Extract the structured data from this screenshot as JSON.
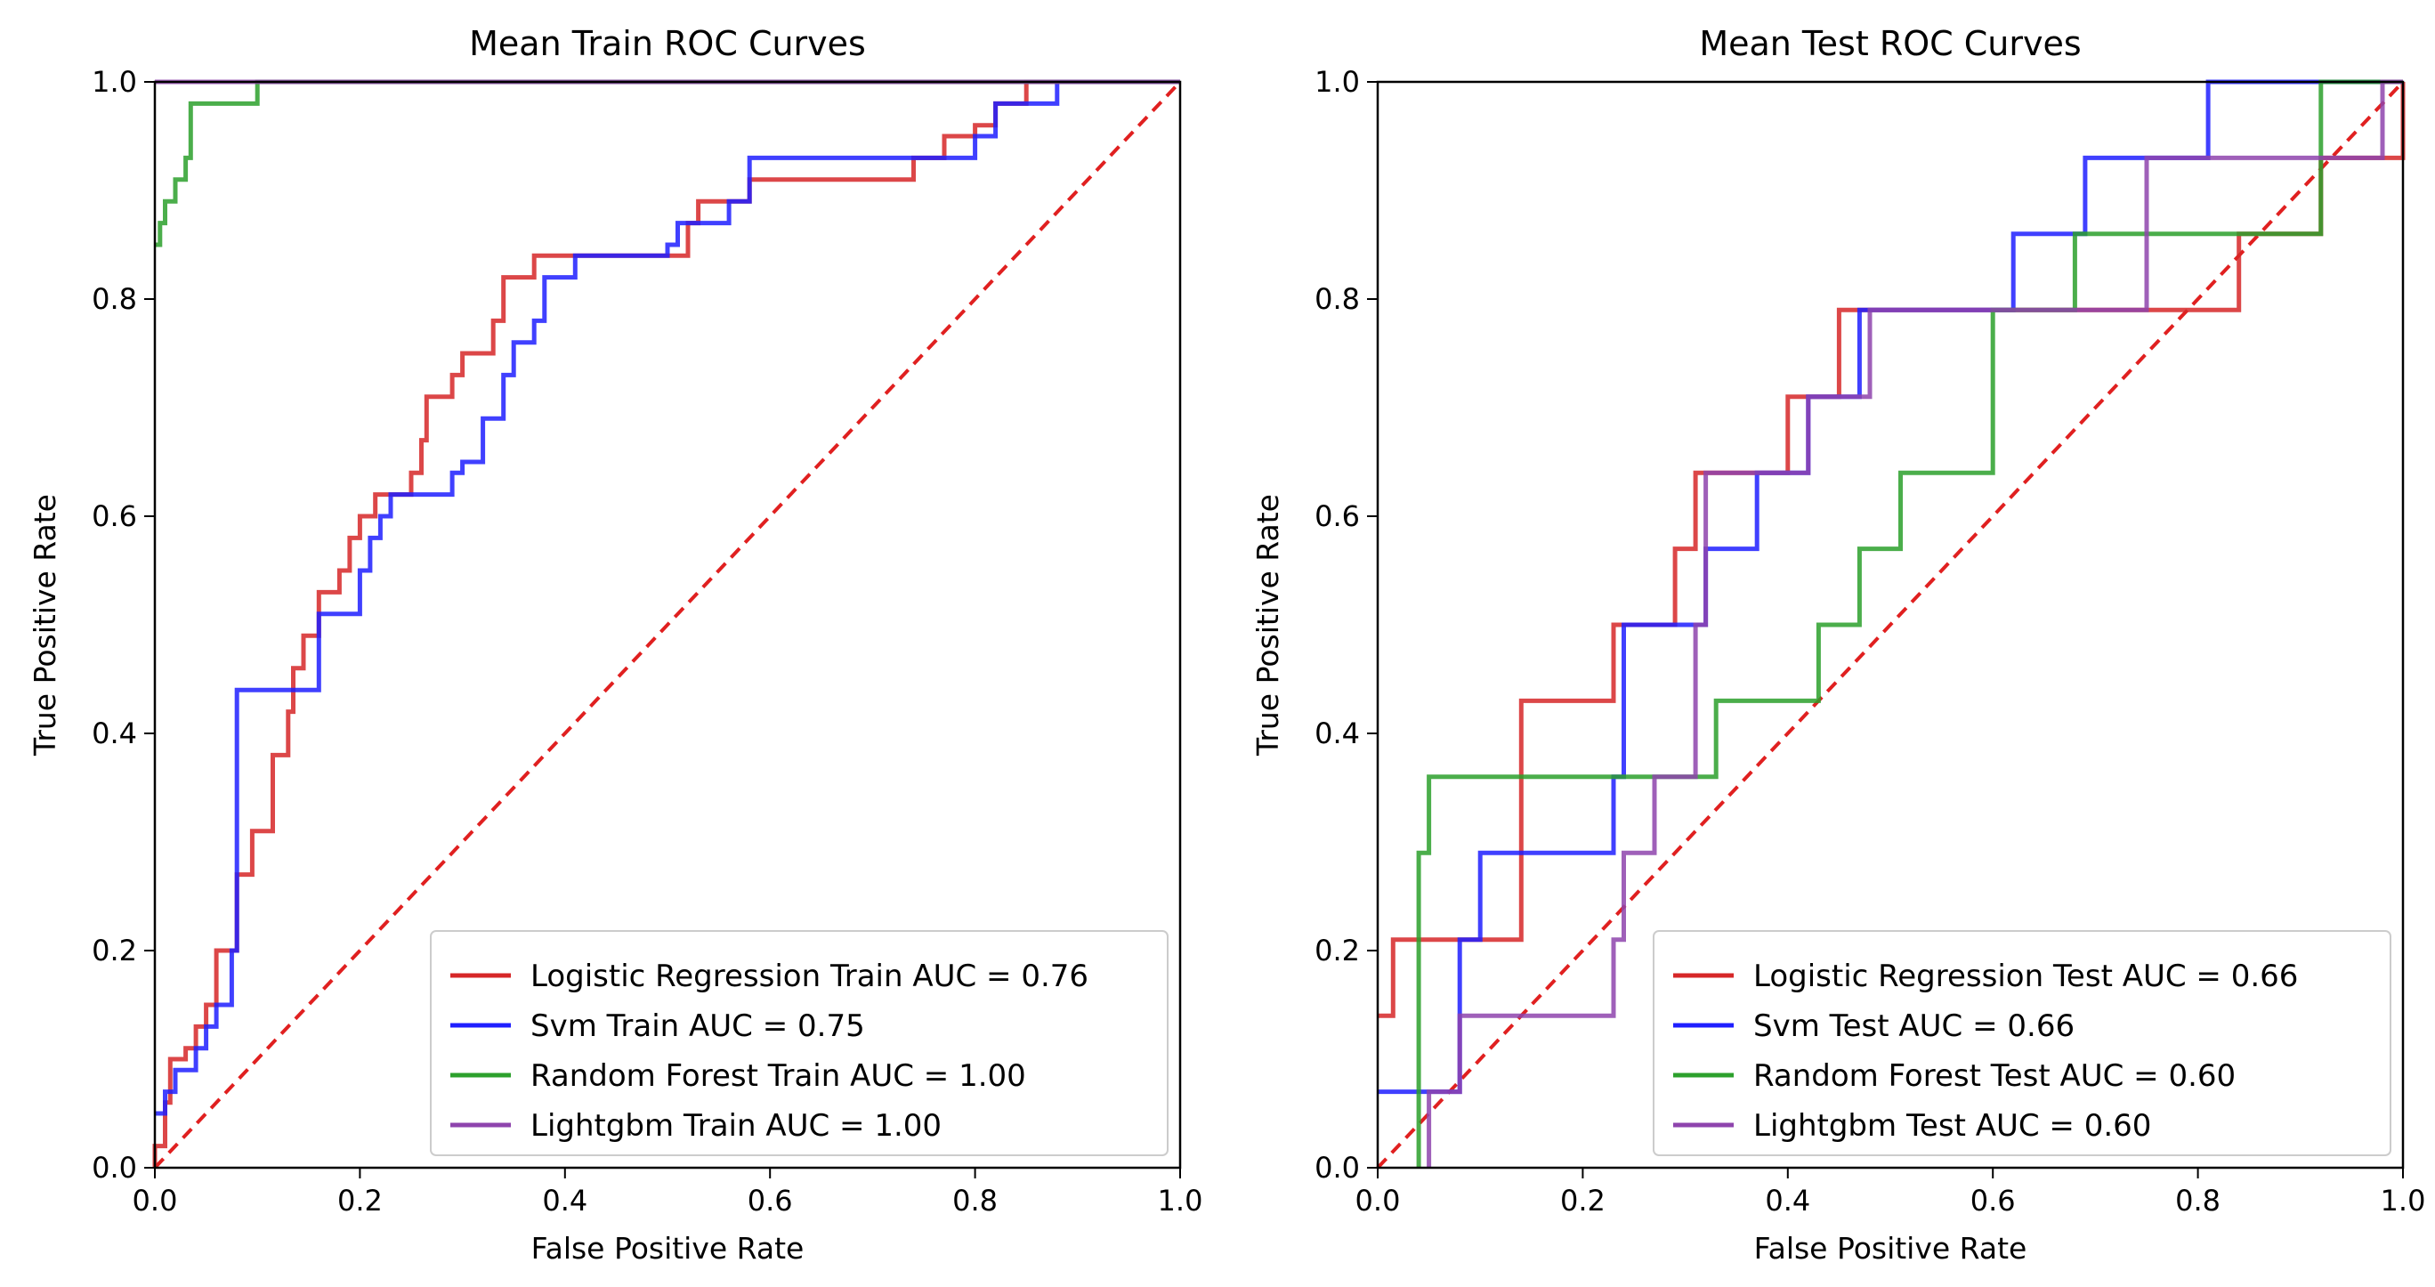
{
  "chart_data": [
    {
      "type": "line",
      "title": "Mean Train ROC Curves",
      "xlabel": "False Positive Rate",
      "ylabel": "True Positive Rate",
      "xlim": [
        0.0,
        1.0
      ],
      "ylim": [
        0.0,
        1.0
      ],
      "xticks": [
        "0.0",
        "0.2",
        "0.4",
        "0.6",
        "0.8",
        "1.0"
      ],
      "yticks": [
        "0.0",
        "0.2",
        "0.4",
        "0.6",
        "0.8",
        "1.0"
      ],
      "grid": false,
      "legend_position": "lower-right",
      "diagonal": {
        "color": "#e02020",
        "style": "dashed"
      },
      "series": [
        {
          "name": "Logistic Regression Train AUC = 0.76",
          "color": "#d62728",
          "points": [
            [
              0.0,
              0.0
            ],
            [
              0.0,
              0.02
            ],
            [
              0.01,
              0.02
            ],
            [
              0.01,
              0.06
            ],
            [
              0.015,
              0.06
            ],
            [
              0.015,
              0.1
            ],
            [
              0.03,
              0.1
            ],
            [
              0.03,
              0.11
            ],
            [
              0.04,
              0.11
            ],
            [
              0.04,
              0.13
            ],
            [
              0.05,
              0.13
            ],
            [
              0.05,
              0.15
            ],
            [
              0.06,
              0.15
            ],
            [
              0.06,
              0.17
            ],
            [
              0.06,
              0.2
            ],
            [
              0.08,
              0.2
            ],
            [
              0.08,
              0.27
            ],
            [
              0.095,
              0.27
            ],
            [
              0.095,
              0.31
            ],
            [
              0.115,
              0.31
            ],
            [
              0.115,
              0.38
            ],
            [
              0.13,
              0.38
            ],
            [
              0.13,
              0.42
            ],
            [
              0.135,
              0.42
            ],
            [
              0.135,
              0.46
            ],
            [
              0.145,
              0.46
            ],
            [
              0.145,
              0.49
            ],
            [
              0.16,
              0.49
            ],
            [
              0.16,
              0.53
            ],
            [
              0.18,
              0.53
            ],
            [
              0.18,
              0.55
            ],
            [
              0.19,
              0.55
            ],
            [
              0.19,
              0.58
            ],
            [
              0.2,
              0.58
            ],
            [
              0.2,
              0.6
            ],
            [
              0.215,
              0.6
            ],
            [
              0.215,
              0.62
            ],
            [
              0.25,
              0.62
            ],
            [
              0.25,
              0.64
            ],
            [
              0.26,
              0.64
            ],
            [
              0.26,
              0.67
            ],
            [
              0.265,
              0.67
            ],
            [
              0.265,
              0.71
            ],
            [
              0.29,
              0.71
            ],
            [
              0.29,
              0.73
            ],
            [
              0.3,
              0.73
            ],
            [
              0.3,
              0.75
            ],
            [
              0.33,
              0.75
            ],
            [
              0.33,
              0.78
            ],
            [
              0.34,
              0.78
            ],
            [
              0.34,
              0.82
            ],
            [
              0.37,
              0.82
            ],
            [
              0.37,
              0.84
            ],
            [
              0.44,
              0.84
            ],
            [
              0.44,
              0.84
            ],
            [
              0.52,
              0.84
            ],
            [
              0.52,
              0.87
            ],
            [
              0.53,
              0.87
            ],
            [
              0.53,
              0.89
            ],
            [
              0.58,
              0.89
            ],
            [
              0.58,
              0.91
            ],
            [
              0.74,
              0.91
            ],
            [
              0.74,
              0.93
            ],
            [
              0.77,
              0.93
            ],
            [
              0.77,
              0.95
            ],
            [
              0.8,
              0.95
            ],
            [
              0.8,
              0.96
            ],
            [
              0.82,
              0.96
            ],
            [
              0.82,
              0.98
            ],
            [
              0.85,
              0.98
            ],
            [
              0.85,
              1.0
            ],
            [
              1.0,
              1.0
            ]
          ]
        },
        {
          "name": "Svm Train AUC = 0.75",
          "color": "#1f1fff",
          "points": [
            [
              0.0,
              0.05
            ],
            [
              0.01,
              0.05
            ],
            [
              0.01,
              0.07
            ],
            [
              0.02,
              0.07
            ],
            [
              0.02,
              0.09
            ],
            [
              0.04,
              0.09
            ],
            [
              0.04,
              0.11
            ],
            [
              0.05,
              0.11
            ],
            [
              0.05,
              0.13
            ],
            [
              0.06,
              0.13
            ],
            [
              0.06,
              0.15
            ],
            [
              0.075,
              0.15
            ],
            [
              0.075,
              0.2
            ],
            [
              0.08,
              0.2
            ],
            [
              0.08,
              0.44
            ],
            [
              0.16,
              0.44
            ],
            [
              0.16,
              0.51
            ],
            [
              0.2,
              0.51
            ],
            [
              0.2,
              0.55
            ],
            [
              0.21,
              0.55
            ],
            [
              0.21,
              0.58
            ],
            [
              0.22,
              0.58
            ],
            [
              0.22,
              0.6
            ],
            [
              0.23,
              0.6
            ],
            [
              0.23,
              0.62
            ],
            [
              0.29,
              0.62
            ],
            [
              0.29,
              0.64
            ],
            [
              0.3,
              0.64
            ],
            [
              0.3,
              0.65
            ],
            [
              0.32,
              0.65
            ],
            [
              0.32,
              0.69
            ],
            [
              0.34,
              0.69
            ],
            [
              0.34,
              0.73
            ],
            [
              0.35,
              0.73
            ],
            [
              0.35,
              0.76
            ],
            [
              0.37,
              0.76
            ],
            [
              0.37,
              0.78
            ],
            [
              0.38,
              0.78
            ],
            [
              0.38,
              0.82
            ],
            [
              0.41,
              0.82
            ],
            [
              0.41,
              0.84
            ],
            [
              0.5,
              0.84
            ],
            [
              0.5,
              0.85
            ],
            [
              0.51,
              0.85
            ],
            [
              0.51,
              0.87
            ],
            [
              0.53,
              0.87
            ],
            [
              0.53,
              0.87
            ],
            [
              0.56,
              0.87
            ],
            [
              0.56,
              0.89
            ],
            [
              0.58,
              0.89
            ],
            [
              0.58,
              0.93
            ],
            [
              0.8,
              0.93
            ],
            [
              0.8,
              0.95
            ],
            [
              0.82,
              0.95
            ],
            [
              0.82,
              0.98
            ],
            [
              0.88,
              0.98
            ],
            [
              0.88,
              1.0
            ],
            [
              1.0,
              1.0
            ]
          ]
        },
        {
          "name": "Random Forest Train AUC = 1.00",
          "color": "#2ca02c",
          "points": [
            [
              0.0,
              0.85
            ],
            [
              0.005,
              0.85
            ],
            [
              0.005,
              0.87
            ],
            [
              0.01,
              0.87
            ],
            [
              0.01,
              0.89
            ],
            [
              0.02,
              0.89
            ],
            [
              0.02,
              0.91
            ],
            [
              0.03,
              0.91
            ],
            [
              0.03,
              0.93
            ],
            [
              0.035,
              0.93
            ],
            [
              0.035,
              0.98
            ],
            [
              0.1,
              0.98
            ],
            [
              0.1,
              1.0
            ],
            [
              1.0,
              1.0
            ]
          ]
        },
        {
          "name": "Lightgbm Train AUC = 1.00",
          "color": "#8e44ad",
          "points": [
            [
              0.0,
              1.0
            ],
            [
              1.0,
              1.0
            ]
          ]
        }
      ]
    },
    {
      "type": "line",
      "title": "Mean Test ROC Curves",
      "xlabel": "False Positive Rate",
      "ylabel": "True Positive Rate",
      "xlim": [
        0.0,
        1.0
      ],
      "ylim": [
        0.0,
        1.0
      ],
      "xticks": [
        "0.0",
        "0.2",
        "0.4",
        "0.6",
        "0.8",
        "1.0"
      ],
      "yticks": [
        "0.0",
        "0.2",
        "0.4",
        "0.6",
        "0.8",
        "1.0"
      ],
      "grid": false,
      "legend_position": "lower-right",
      "diagonal": {
        "color": "#e02020",
        "style": "dashed"
      },
      "series": [
        {
          "name": "Logistic Regression Test AUC = 0.66",
          "color": "#d62728",
          "points": [
            [
              0.0,
              0.14
            ],
            [
              0.015,
              0.14
            ],
            [
              0.015,
              0.21
            ],
            [
              0.14,
              0.21
            ],
            [
              0.14,
              0.43
            ],
            [
              0.23,
              0.43
            ],
            [
              0.23,
              0.5
            ],
            [
              0.29,
              0.5
            ],
            [
              0.29,
              0.57
            ],
            [
              0.31,
              0.57
            ],
            [
              0.31,
              0.64
            ],
            [
              0.4,
              0.64
            ],
            [
              0.4,
              0.71
            ],
            [
              0.45,
              0.71
            ],
            [
              0.45,
              0.79
            ],
            [
              0.84,
              0.79
            ],
            [
              0.84,
              0.86
            ],
            [
              0.92,
              0.86
            ],
            [
              0.92,
              0.93
            ],
            [
              1.0,
              0.93
            ],
            [
              1.0,
              1.0
            ]
          ]
        },
        {
          "name": "Svm Test AUC = 0.66",
          "color": "#1f1fff",
          "points": [
            [
              0.0,
              0.07
            ],
            [
              0.08,
              0.07
            ],
            [
              0.08,
              0.21
            ],
            [
              0.1,
              0.21
            ],
            [
              0.1,
              0.29
            ],
            [
              0.23,
              0.29
            ],
            [
              0.23,
              0.36
            ],
            [
              0.24,
              0.36
            ],
            [
              0.24,
              0.5
            ],
            [
              0.32,
              0.5
            ],
            [
              0.32,
              0.57
            ],
            [
              0.37,
              0.57
            ],
            [
              0.37,
              0.64
            ],
            [
              0.42,
              0.64
            ],
            [
              0.42,
              0.71
            ],
            [
              0.47,
              0.71
            ],
            [
              0.47,
              0.79
            ],
            [
              0.62,
              0.79
            ],
            [
              0.62,
              0.86
            ],
            [
              0.69,
              0.86
            ],
            [
              0.69,
              0.93
            ],
            [
              0.81,
              0.93
            ],
            [
              0.81,
              1.0
            ],
            [
              1.0,
              1.0
            ]
          ]
        },
        {
          "name": "Random Forest Test AUC = 0.60",
          "color": "#2ca02c",
          "points": [
            [
              0.04,
              0.0
            ],
            [
              0.04,
              0.29
            ],
            [
              0.05,
              0.29
            ],
            [
              0.05,
              0.36
            ],
            [
              0.33,
              0.36
            ],
            [
              0.33,
              0.43
            ],
            [
              0.43,
              0.43
            ],
            [
              0.43,
              0.5
            ],
            [
              0.47,
              0.5
            ],
            [
              0.47,
              0.57
            ],
            [
              0.51,
              0.57
            ],
            [
              0.51,
              0.64
            ],
            [
              0.6,
              0.64
            ],
            [
              0.6,
              0.79
            ],
            [
              0.68,
              0.79
            ],
            [
              0.68,
              0.86
            ],
            [
              0.92,
              0.86
            ],
            [
              0.92,
              1.0
            ],
            [
              1.0,
              1.0
            ]
          ]
        },
        {
          "name": "Lightgbm Test AUC = 0.60",
          "color": "#8e44ad",
          "points": [
            [
              0.05,
              0.0
            ],
            [
              0.05,
              0.07
            ],
            [
              0.08,
              0.07
            ],
            [
              0.08,
              0.14
            ],
            [
              0.23,
              0.14
            ],
            [
              0.23,
              0.21
            ],
            [
              0.24,
              0.21
            ],
            [
              0.24,
              0.29
            ],
            [
              0.27,
              0.29
            ],
            [
              0.27,
              0.36
            ],
            [
              0.31,
              0.36
            ],
            [
              0.31,
              0.5
            ],
            [
              0.32,
              0.5
            ],
            [
              0.32,
              0.64
            ],
            [
              0.42,
              0.64
            ],
            [
              0.42,
              0.71
            ],
            [
              0.48,
              0.71
            ],
            [
              0.48,
              0.79
            ],
            [
              0.75,
              0.79
            ],
            [
              0.75,
              0.93
            ],
            [
              0.98,
              0.93
            ],
            [
              0.98,
              1.0
            ],
            [
              1.0,
              1.0
            ]
          ]
        }
      ]
    }
  ]
}
